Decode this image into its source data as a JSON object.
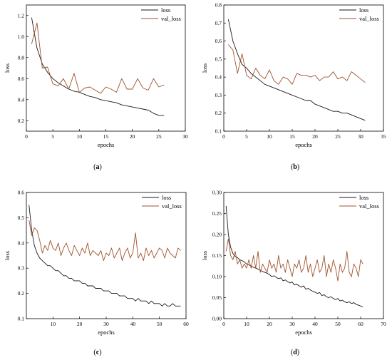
{
  "colors": {
    "loss": "#1a1a1a",
    "val_loss": "#a0522d",
    "axis": "#000000"
  },
  "chart_data": [
    {
      "type": "line",
      "panel": "(a)",
      "xlabel": "epochs",
      "ylabel": "loss",
      "xlim": [
        0,
        30
      ],
      "ylim": [
        0.1,
        1.3
      ],
      "xticks": [
        0,
        5,
        10,
        15,
        20,
        25,
        30
      ],
      "yticks": [
        0.2,
        0.4,
        0.6,
        0.8,
        1.0,
        1.2
      ],
      "ytick_decimals": 1,
      "legend": "top-right",
      "series": [
        {
          "name": "loss",
          "x": [
            1,
            2,
            3,
            4,
            5,
            6,
            7,
            8,
            9,
            10,
            11,
            12,
            13,
            14,
            15,
            16,
            17,
            18,
            19,
            20,
            21,
            22,
            23,
            24,
            25,
            26
          ],
          "values": [
            1.18,
            0.89,
            0.74,
            0.66,
            0.6,
            0.56,
            0.53,
            0.5,
            0.48,
            0.47,
            0.45,
            0.43,
            0.42,
            0.4,
            0.39,
            0.38,
            0.37,
            0.35,
            0.34,
            0.33,
            0.32,
            0.31,
            0.3,
            0.27,
            0.25,
            0.25
          ]
        },
        {
          "name": "val_loss",
          "x": [
            1,
            2,
            3,
            4,
            5,
            6,
            7,
            8,
            9,
            10,
            11,
            12,
            13,
            14,
            15,
            16,
            17,
            18,
            19,
            20,
            21,
            22,
            23,
            24,
            25,
            26
          ],
          "values": [
            0.93,
            1.13,
            0.7,
            0.71,
            0.55,
            0.53,
            0.6,
            0.5,
            0.65,
            0.47,
            0.51,
            0.52,
            0.49,
            0.46,
            0.52,
            0.5,
            0.47,
            0.6,
            0.5,
            0.5,
            0.6,
            0.51,
            0.49,
            0.6,
            0.52,
            0.54
          ]
        }
      ]
    },
    {
      "type": "line",
      "panel": "(b)",
      "xlabel": "epochs",
      "ylabel": "loss",
      "xlim": [
        0,
        35
      ],
      "ylim": [
        0.1,
        0.8
      ],
      "xticks": [
        0,
        5,
        10,
        15,
        20,
        25,
        30,
        35
      ],
      "yticks": [
        0.1,
        0.2,
        0.3,
        0.4,
        0.5,
        0.6,
        0.7,
        0.8
      ],
      "ytick_decimals": 1,
      "legend": "top-right",
      "series": [
        {
          "name": "loss",
          "x": [
            1,
            2,
            3,
            4,
            5,
            6,
            7,
            8,
            9,
            10,
            11,
            12,
            13,
            14,
            15,
            16,
            17,
            18,
            19,
            20,
            21,
            22,
            23,
            24,
            25,
            26,
            27,
            28,
            29,
            30,
            31
          ],
          "values": [
            0.72,
            0.6,
            0.53,
            0.47,
            0.45,
            0.42,
            0.4,
            0.38,
            0.36,
            0.35,
            0.34,
            0.33,
            0.32,
            0.31,
            0.3,
            0.29,
            0.28,
            0.27,
            0.27,
            0.25,
            0.24,
            0.23,
            0.22,
            0.21,
            0.21,
            0.2,
            0.2,
            0.19,
            0.18,
            0.17,
            0.16
          ]
        },
        {
          "name": "val_loss",
          "x": [
            1,
            2,
            3,
            4,
            5,
            6,
            7,
            8,
            9,
            10,
            11,
            12,
            13,
            14,
            15,
            16,
            17,
            18,
            19,
            20,
            21,
            22,
            23,
            24,
            25,
            26,
            27,
            28,
            29,
            30,
            31
          ],
          "values": [
            0.58,
            0.55,
            0.42,
            0.53,
            0.41,
            0.39,
            0.45,
            0.41,
            0.39,
            0.44,
            0.38,
            0.36,
            0.4,
            0.39,
            0.36,
            0.42,
            0.41,
            0.41,
            0.4,
            0.41,
            0.38,
            0.4,
            0.4,
            0.43,
            0.39,
            0.4,
            0.38,
            0.43,
            0.41,
            0.39,
            0.37
          ]
        }
      ]
    },
    {
      "type": "line",
      "panel": "(c)",
      "xlabel": "epochs",
      "ylabel": "loss",
      "xlim": [
        0,
        60
      ],
      "ylim": [
        0.1,
        0.6
      ],
      "xticks": [
        10,
        20,
        30,
        40,
        50,
        60
      ],
      "yticks": [
        0.1,
        0.2,
        0.3,
        0.4,
        0.5,
        0.6
      ],
      "ytick_decimals": 1,
      "legend": "top-right",
      "series": [
        {
          "name": "loss",
          "x": [
            1,
            2,
            3,
            4,
            5,
            6,
            7,
            8,
            9,
            10,
            11,
            12,
            13,
            14,
            15,
            16,
            17,
            18,
            19,
            20,
            21,
            22,
            23,
            24,
            25,
            26,
            27,
            28,
            29,
            30,
            31,
            32,
            33,
            34,
            35,
            36,
            37,
            38,
            39,
            40,
            41,
            42,
            43,
            44,
            45,
            46,
            47,
            48,
            49,
            50,
            51,
            52,
            53,
            54,
            55,
            56,
            57,
            58
          ],
          "values": [
            0.55,
            0.45,
            0.39,
            0.36,
            0.34,
            0.33,
            0.32,
            0.31,
            0.31,
            0.3,
            0.29,
            0.29,
            0.28,
            0.27,
            0.27,
            0.26,
            0.26,
            0.25,
            0.25,
            0.25,
            0.24,
            0.24,
            0.23,
            0.23,
            0.23,
            0.22,
            0.22,
            0.22,
            0.21,
            0.21,
            0.21,
            0.2,
            0.2,
            0.2,
            0.19,
            0.19,
            0.19,
            0.18,
            0.18,
            0.18,
            0.17,
            0.18,
            0.17,
            0.17,
            0.17,
            0.16,
            0.17,
            0.16,
            0.16,
            0.16,
            0.15,
            0.16,
            0.15,
            0.15,
            0.16,
            0.15,
            0.15,
            0.15
          ]
        },
        {
          "name": "val_loss",
          "x": [
            1,
            2,
            3,
            4,
            5,
            6,
            7,
            8,
            9,
            10,
            11,
            12,
            13,
            14,
            15,
            16,
            17,
            18,
            19,
            20,
            21,
            22,
            23,
            24,
            25,
            26,
            27,
            28,
            29,
            30,
            31,
            32,
            33,
            34,
            35,
            36,
            37,
            38,
            39,
            40,
            41,
            42,
            43,
            44,
            45,
            46,
            47,
            48,
            49,
            50,
            51,
            52,
            53,
            54,
            55,
            56,
            57,
            58
          ],
          "values": [
            0.49,
            0.43,
            0.46,
            0.45,
            0.41,
            0.36,
            0.39,
            0.37,
            0.41,
            0.38,
            0.37,
            0.4,
            0.35,
            0.38,
            0.4,
            0.37,
            0.35,
            0.39,
            0.37,
            0.35,
            0.38,
            0.36,
            0.4,
            0.35,
            0.37,
            0.36,
            0.35,
            0.37,
            0.33,
            0.36,
            0.35,
            0.38,
            0.34,
            0.36,
            0.38,
            0.33,
            0.36,
            0.38,
            0.34,
            0.36,
            0.44,
            0.34,
            0.36,
            0.33,
            0.38,
            0.35,
            0.37,
            0.34,
            0.36,
            0.38,
            0.37,
            0.34,
            0.38,
            0.36,
            0.35,
            0.34,
            0.38,
            0.37
          ]
        }
      ]
    },
    {
      "type": "line",
      "panel": "(d)",
      "xlabel": "epochs",
      "ylabel": "loss",
      "xlim": [
        0,
        70
      ],
      "ylim": [
        0.0,
        0.3
      ],
      "xticks": [
        0,
        10,
        20,
        30,
        40,
        50,
        60,
        70
      ],
      "yticks": [
        0.0,
        0.05,
        0.1,
        0.15,
        0.2,
        0.25,
        0.3
      ],
      "ytick_decimals": 2,
      "legend": "top-right",
      "series": [
        {
          "name": "loss",
          "x": [
            1,
            2,
            3,
            4,
            5,
            6,
            7,
            8,
            9,
            10,
            11,
            12,
            13,
            14,
            15,
            16,
            17,
            18,
            19,
            20,
            21,
            22,
            23,
            24,
            25,
            26,
            27,
            28,
            29,
            30,
            31,
            32,
            33,
            34,
            35,
            36,
            37,
            38,
            39,
            40,
            41,
            42,
            43,
            44,
            45,
            46,
            47,
            48,
            49,
            50,
            51,
            52,
            53,
            54,
            55,
            56,
            57,
            58,
            59,
            60,
            61
          ],
          "values": [
            0.268,
            0.2,
            0.17,
            0.155,
            0.148,
            0.145,
            0.14,
            0.138,
            0.135,
            0.13,
            0.128,
            0.125,
            0.122,
            0.12,
            0.118,
            0.115,
            0.112,
            0.11,
            0.108,
            0.105,
            0.1,
            0.102,
            0.098,
            0.095,
            0.097,
            0.09,
            0.092,
            0.088,
            0.085,
            0.087,
            0.08,
            0.082,
            0.078,
            0.075,
            0.078,
            0.07,
            0.072,
            0.068,
            0.065,
            0.063,
            0.06,
            0.062,
            0.055,
            0.057,
            0.052,
            0.05,
            0.052,
            0.048,
            0.045,
            0.048,
            0.042,
            0.044,
            0.04,
            0.038,
            0.04,
            0.036,
            0.038,
            0.034,
            0.032,
            0.03,
            0.028
          ]
        },
        {
          "name": "val_loss",
          "x": [
            1,
            2,
            3,
            4,
            5,
            6,
            7,
            8,
            9,
            10,
            11,
            12,
            13,
            14,
            15,
            16,
            17,
            18,
            19,
            20,
            21,
            22,
            23,
            24,
            25,
            26,
            27,
            28,
            29,
            30,
            31,
            32,
            33,
            34,
            35,
            36,
            37,
            38,
            39,
            40,
            41,
            42,
            43,
            44,
            45,
            46,
            47,
            48,
            49,
            50,
            51,
            52,
            53,
            54,
            55,
            56,
            57,
            58,
            59,
            60,
            61
          ],
          "values": [
            0.16,
            0.19,
            0.15,
            0.14,
            0.16,
            0.13,
            0.14,
            0.12,
            0.13,
            0.12,
            0.14,
            0.12,
            0.15,
            0.12,
            0.16,
            0.11,
            0.13,
            0.12,
            0.11,
            0.14,
            0.12,
            0.13,
            0.11,
            0.15,
            0.12,
            0.13,
            0.11,
            0.14,
            0.12,
            0.1,
            0.13,
            0.12,
            0.14,
            0.11,
            0.12,
            0.15,
            0.11,
            0.13,
            0.1,
            0.12,
            0.14,
            0.11,
            0.12,
            0.15,
            0.1,
            0.13,
            0.11,
            0.14,
            0.12,
            0.09,
            0.13,
            0.11,
            0.12,
            0.16,
            0.11,
            0.1,
            0.13,
            0.12,
            0.1,
            0.14,
            0.13
          ]
        }
      ]
    }
  ]
}
